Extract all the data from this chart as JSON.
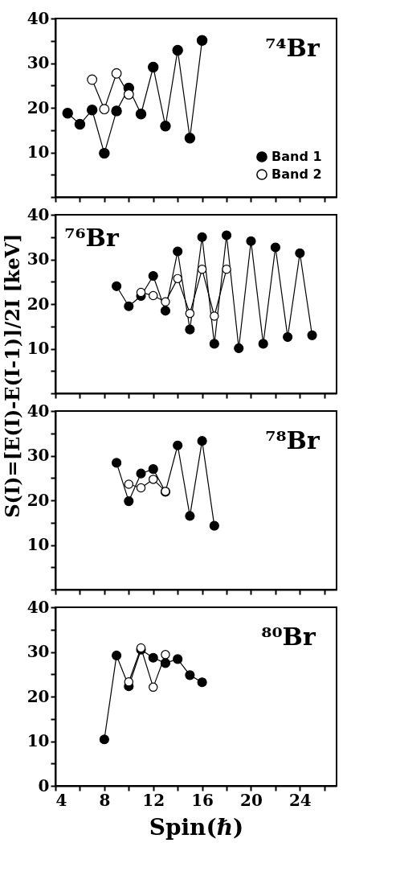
{
  "chart_data": [
    {
      "type": "line",
      "ylabel": "S(I)=[E(I)-E(I-1)]/2I [keV]",
      "annotations": [
        "⁷⁴Br"
      ],
      "xlim": [
        4,
        27
      ],
      "ylim": [
        0,
        40
      ],
      "xticks": [
        4,
        {
          "value": 6,
          "label": null
        },
        8,
        {
          "value": 10,
          "label": null
        },
        12,
        {
          "value": 14,
          "label": null
        },
        16,
        {
          "value": 18,
          "label": null
        },
        20,
        {
          "value": 22,
          "label": null
        },
        24,
        {
          "value": 26,
          "label": null
        }
      ],
      "yticks": [
        {
          "value": 0,
          "label": null
        },
        {
          "value": 5,
          "label": null
        },
        10,
        {
          "value": 15,
          "label": null
        },
        20,
        {
          "value": 25,
          "label": null
        },
        30,
        {
          "value": 35,
          "label": null
        },
        40
      ],
      "tick_labels": "y",
      "legend": "bottom right",
      "marker": "circle",
      "grid": false,
      "series": [
        {
          "name": "Band 1",
          "color": "#000000",
          "x": [
            5,
            6,
            7,
            8,
            9,
            10,
            11,
            12,
            13,
            14,
            15,
            16
          ],
          "values": [
            18.8,
            16.3,
            19.5,
            9.8,
            19.3,
            24.4,
            18.6,
            29.1,
            15.9,
            32.9,
            13.2,
            35.1
          ]
        },
        {
          "name": "Band 2",
          "color": "#ffffff",
          "x": [
            7,
            8,
            9,
            10
          ],
          "values": [
            26.3,
            19.7,
            27.7,
            23.0
          ]
        }
      ]
    },
    {
      "type": "line",
      "annotations": [
        "⁷⁶Br"
      ],
      "xlim": [
        4,
        27
      ],
      "ylim": [
        0,
        40
      ],
      "xticks": [
        4,
        {
          "value": 6,
          "label": null
        },
        8,
        {
          "value": 10,
          "label": null
        },
        12,
        {
          "value": 14,
          "label": null
        },
        16,
        {
          "value": 18,
          "label": null
        },
        20,
        {
          "value": 22,
          "label": null
        },
        24,
        {
          "value": 26,
          "label": null
        }
      ],
      "yticks": [
        {
          "value": 0,
          "label": null
        },
        {
          "value": 5,
          "label": null
        },
        10,
        {
          "value": 15,
          "label": null
        },
        20,
        {
          "value": 25,
          "label": null
        },
        30,
        {
          "value": 35,
          "label": null
        },
        40
      ],
      "tick_labels": "y",
      "marker": "circle",
      "grid": false,
      "series": [
        {
          "color": "#000000",
          "x": [
            9,
            10,
            11,
            12,
            13,
            14,
            15,
            16,
            17,
            18,
            19,
            20,
            21,
            22,
            23,
            24,
            25
          ],
          "values": [
            24.0,
            19.5,
            21.8,
            26.3,
            18.5,
            31.8,
            14.3,
            35.0,
            11.1,
            35.4,
            10.1,
            34.1,
            11.1,
            32.7,
            12.6,
            31.4,
            13.0
          ]
        },
        {
          "color": "#ffffff",
          "x": [
            11,
            12,
            13,
            14,
            15,
            16,
            17,
            18
          ],
          "values": [
            22.6,
            21.9,
            20.5,
            25.7,
            17.9,
            27.8,
            17.3,
            27.8
          ]
        }
      ]
    },
    {
      "type": "line",
      "annotations": [
        "⁷⁸Br"
      ],
      "xlim": [
        4,
        27
      ],
      "ylim": [
        0,
        40
      ],
      "xticks": [
        4,
        {
          "value": 6,
          "label": null
        },
        8,
        {
          "value": 10,
          "label": null
        },
        12,
        {
          "value": 14,
          "label": null
        },
        16,
        {
          "value": 18,
          "label": null
        },
        20,
        {
          "value": 22,
          "label": null
        },
        24,
        {
          "value": 26,
          "label": null
        }
      ],
      "yticks": [
        {
          "value": 0,
          "label": null
        },
        {
          "value": 5,
          "label": null
        },
        10,
        {
          "value": 15,
          "label": null
        },
        20,
        {
          "value": 25,
          "label": null
        },
        30,
        {
          "value": 35,
          "label": null
        },
        40
      ],
      "tick_labels": "y",
      "marker": "circle",
      "grid": false,
      "series": [
        {
          "color": "#000000",
          "x": [
            9,
            10,
            11,
            12,
            13,
            14,
            15,
            16,
            17
          ],
          "values": [
            28.4,
            19.8,
            26.0,
            27.0,
            21.9,
            32.3,
            16.5,
            33.3,
            14.3
          ]
        },
        {
          "color": "#ffffff",
          "x": [
            10,
            11,
            12,
            13
          ],
          "values": [
            23.6,
            22.8,
            24.7,
            22.0
          ]
        }
      ]
    },
    {
      "type": "line",
      "xlabel": "Spin(ℏ)",
      "annotations": [
        "⁸⁰Br"
      ],
      "xlim": [
        4,
        27
      ],
      "ylim": [
        0,
        40
      ],
      "xticks": [
        4,
        {
          "value": 6,
          "label": null
        },
        8,
        {
          "value": 10,
          "label": null
        },
        12,
        {
          "value": 14,
          "label": null
        },
        16,
        {
          "value": 18,
          "label": null
        },
        20,
        {
          "value": 22,
          "label": null
        },
        24,
        {
          "value": 26,
          "label": null
        }
      ],
      "yticks": [
        0,
        {
          "value": 5,
          "label": null
        },
        10,
        {
          "value": 15,
          "label": null
        },
        20,
        {
          "value": 25,
          "label": null
        },
        30,
        {
          "value": 35,
          "label": null
        },
        40
      ],
      "marker": "circle",
      "grid": false,
      "series": [
        {
          "color": "#000000",
          "x": [
            8,
            9,
            10,
            11,
            12,
            13,
            14,
            15,
            16
          ],
          "values": [
            10.4,
            29.2,
            22.3,
            30.5,
            28.7,
            27.5,
            28.4,
            24.8,
            23.2
          ]
        },
        {
          "color": "#ffffff",
          "x": [
            10,
            11,
            12,
            13
          ],
          "values": [
            23.3,
            30.9,
            22.1,
            29.4
          ]
        }
      ]
    }
  ]
}
